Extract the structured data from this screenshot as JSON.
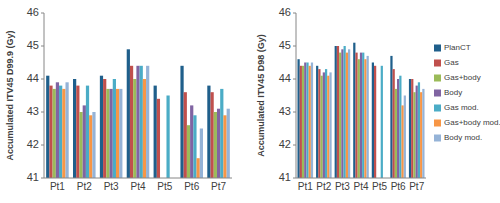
{
  "chart_data": [
    {
      "type": "bar",
      "y_label": "Accumulated ITV45 D99.9 (Gy)",
      "categories": [
        "Pt1",
        "Pt2",
        "Pt3",
        "Pt4",
        "Pt5",
        "Pt6",
        "Pt7"
      ],
      "ylim": [
        41,
        46
      ],
      "yticks": [
        41,
        42,
        43,
        44,
        45,
        46
      ],
      "grid": false,
      "series": [
        {
          "name": "PlanCT",
          "color": "#1f5f8b",
          "values": [
            44.1,
            44.0,
            44.1,
            44.9,
            43.8,
            44.4,
            43.8
          ]
        },
        {
          "name": "Gas",
          "color": "#c0504d",
          "values": [
            43.8,
            43.8,
            44.0,
            44.4,
            43.4,
            43.6,
            43.6
          ]
        },
        {
          "name": "Gas+body",
          "color": "#9bbb59",
          "values": [
            43.7,
            43.0,
            43.7,
            44.0,
            null,
            42.6,
            43.0
          ]
        },
        {
          "name": "Body",
          "color": "#8064a2",
          "values": [
            43.9,
            43.2,
            43.7,
            44.4,
            null,
            43.2,
            43.1
          ]
        },
        {
          "name": "Gas mod.",
          "color": "#4bacc6",
          "values": [
            43.8,
            43.8,
            44.0,
            44.4,
            43.5,
            42.9,
            43.7
          ]
        },
        {
          "name": "Gas+body mod.",
          "color": "#f79646",
          "values": [
            43.7,
            42.9,
            43.7,
            44.0,
            null,
            41.6,
            42.9
          ]
        },
        {
          "name": "Body mod.",
          "color": "#95b3d7",
          "values": [
            43.9,
            43.0,
            43.7,
            44.4,
            null,
            42.5,
            43.1
          ]
        }
      ]
    },
    {
      "type": "bar",
      "y_label": "Accumulated ITV45 D98 (Gy)",
      "categories": [
        "Pt1",
        "Pt2",
        "Pt3",
        "Pt4",
        "Pt5",
        "Pt6",
        "Pt7"
      ],
      "ylim": [
        41,
        46
      ],
      "yticks": [
        41,
        42,
        43,
        44,
        45,
        46
      ],
      "grid": false,
      "legend": "right",
      "series": [
        {
          "name": "PlanCT",
          "color": "#1f5f8b",
          "values": [
            44.6,
            44.4,
            45.0,
            45.1,
            44.5,
            44.7,
            44.0
          ]
        },
        {
          "name": "Gas",
          "color": "#c0504d",
          "values": [
            44.4,
            44.3,
            45.0,
            44.8,
            44.4,
            44.3,
            44.0
          ]
        },
        {
          "name": "Gas+body",
          "color": "#9bbb59",
          "values": [
            44.4,
            44.1,
            44.8,
            44.6,
            null,
            43.7,
            43.6
          ]
        },
        {
          "name": "Body",
          "color": "#8064a2",
          "values": [
            44.5,
            44.2,
            44.9,
            44.8,
            null,
            44.0,
            43.8
          ]
        },
        {
          "name": "Gas mod.",
          "color": "#4bacc6",
          "values": [
            44.5,
            44.3,
            45.0,
            44.8,
            44.4,
            44.1,
            43.9
          ]
        },
        {
          "name": "Gas+body mod.",
          "color": "#f79646",
          "values": [
            44.4,
            44.1,
            44.8,
            44.6,
            null,
            43.2,
            43.6
          ]
        },
        {
          "name": "Body mod.",
          "color": "#95b3d7",
          "values": [
            44.5,
            44.2,
            44.9,
            44.7,
            null,
            43.5,
            43.7
          ]
        }
      ]
    }
  ]
}
